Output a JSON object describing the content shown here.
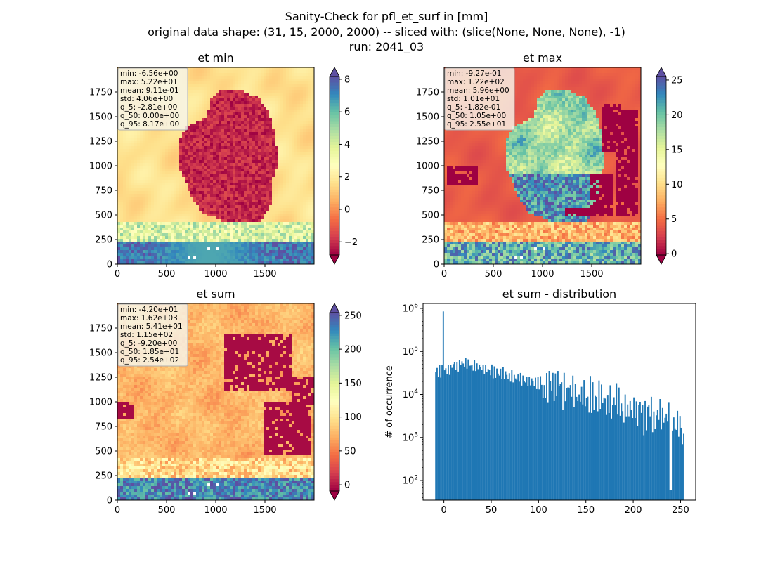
{
  "figure": {
    "title_line1": "Sanity-Check for pfl_et_surf in [mm]",
    "title_line2": "original data shape: (31, 15, 2000, 2000) -- sliced with: (slice(None, None, None), -1)",
    "title_line3": "run: 2041_03",
    "colormap": [
      "#9e0142",
      "#d53e4f",
      "#f46d43",
      "#fdae61",
      "#fee08b",
      "#ffffbf",
      "#e6f598",
      "#abdda4",
      "#66c2a5",
      "#3288bd",
      "#5e4fa2"
    ]
  },
  "chart_data": [
    {
      "type": "heatmap",
      "title": "et min",
      "x_ticks": [
        "0",
        "500",
        "1000",
        "1500"
      ],
      "y_ticks": [
        "0",
        "250",
        "500",
        "750",
        "1000",
        "1250",
        "1500",
        "1750"
      ],
      "xlim": [
        0,
        2000
      ],
      "ylim": [
        0,
        2000
      ],
      "vmin": -2.81,
      "vmax": 8.17,
      "colorbar_ticks": [
        "−2",
        "0",
        "2",
        "4",
        "6",
        "8"
      ],
      "colorbar_tick_values": [
        -2,
        0,
        2,
        4,
        6,
        8
      ],
      "stats": [
        "min: -6.56e+00",
        "max: 5.22e+01",
        "mean: 9.11e-01",
        "std: 4.06e+00",
        "q_5: -2.81e+00",
        "q_50: 0.00e+00",
        "q_95: 8.17e+00"
      ]
    },
    {
      "type": "heatmap",
      "title": "et max",
      "x_ticks": [
        "0",
        "500",
        "1000",
        "1500"
      ],
      "y_ticks": [
        "0",
        "250",
        "500",
        "750",
        "1000",
        "1250",
        "1500",
        "1750"
      ],
      "xlim": [
        0,
        2000
      ],
      "ylim": [
        0,
        2000
      ],
      "vmin": -0.182,
      "vmax": 25.5,
      "colorbar_ticks": [
        "0",
        "5",
        "10",
        "15",
        "20",
        "25"
      ],
      "colorbar_tick_values": [
        0,
        5,
        10,
        15,
        20,
        25
      ],
      "stats": [
        "min: -9.27e-01",
        "max: 1.22e+02",
        "mean: 5.96e+00",
        "std: 1.01e+01",
        "q_5: -1.82e-01",
        "q_50: 1.05e+00",
        "q_95: 2.55e+01"
      ]
    },
    {
      "type": "heatmap",
      "title": "et sum",
      "x_ticks": [
        "0",
        "500",
        "1000",
        "1500"
      ],
      "y_ticks": [
        "0",
        "250",
        "500",
        "750",
        "1000",
        "1250",
        "1500",
        "1750"
      ],
      "xlim": [
        0,
        2000
      ],
      "ylim": [
        0,
        2000
      ],
      "vmin": -9.2,
      "vmax": 254,
      "colorbar_ticks": [
        "0",
        "50",
        "100",
        "150",
        "200",
        "250"
      ],
      "colorbar_tick_values": [
        0,
        50,
        100,
        150,
        200,
        250
      ],
      "stats": [
        "min: -4.20e+01",
        "max: 1.62e+03",
        "mean: 5.41e+01",
        "std: 1.15e+02",
        "q_5: -9.20e+00",
        "q_50: 1.85e+01",
        "q_95: 2.54e+02"
      ]
    },
    {
      "type": "bar",
      "title": "et sum - distribution",
      "ylabel": "# of occurrence",
      "xlabel": "",
      "yscale": "log",
      "xlim": [
        -22,
        266
      ],
      "ylim": [
        35,
        1300000
      ],
      "x_ticks": [
        "0",
        "50",
        "100",
        "150",
        "200",
        "250"
      ],
      "x_tick_values": [
        0,
        50,
        100,
        150,
        200,
        250
      ],
      "y_ticks": [
        "10^2",
        "10^3",
        "10^4",
        "10^5",
        "10^6"
      ],
      "y_tick_values": [
        100,
        1000,
        10000,
        100000,
        1000000
      ],
      "bin_edges_range": [
        -9.2,
        254
      ],
      "bins": 200,
      "color": "#1f77b4",
      "notes": {
        "spike_at_x": 0,
        "spike_value": 850000,
        "dip_at_x": 240,
        "dip_value": 60,
        "last_bar_value": 700
      }
    }
  ]
}
